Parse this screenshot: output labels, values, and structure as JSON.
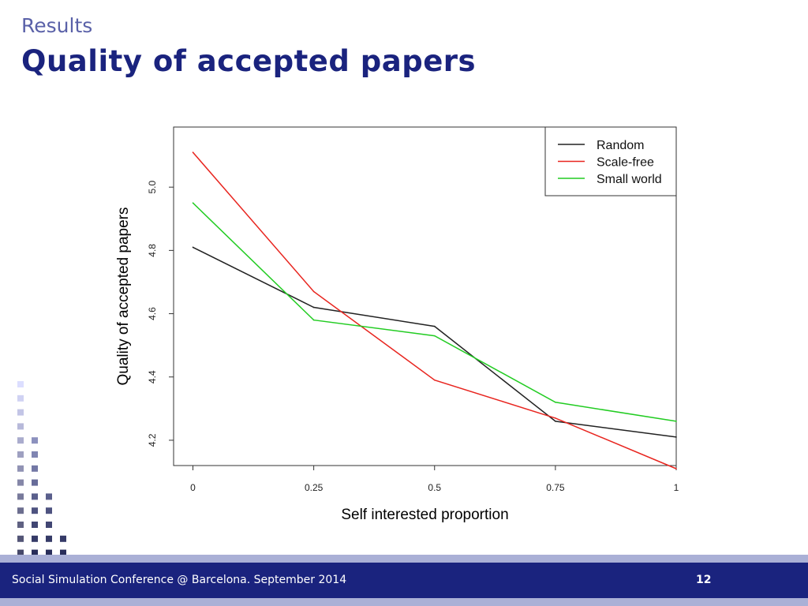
{
  "slide": {
    "section": "Results",
    "title": "Quality of accepted papers"
  },
  "footer": {
    "conference": "Social Simulation Conference @ Barcelona. September 2014",
    "page_number": "12"
  },
  "colors": {
    "title": "#1a237e",
    "section": "#5a61a8",
    "footer_bg": "#1a237e",
    "footer_band": "#aab0d6"
  },
  "chart_data": {
    "type": "line",
    "title": "",
    "xlabel": "Self interested proportion",
    "ylabel": "Quality of accepted papers",
    "x": [
      0,
      0.25,
      0.5,
      0.75,
      1
    ],
    "x_tick_labels": [
      "0",
      "0.25",
      "0.5",
      "0.75",
      "1"
    ],
    "y_ticks": [
      4.2,
      4.4,
      4.6,
      4.8,
      5.0
    ],
    "y_tick_labels": [
      "4.2",
      "4.4",
      "4.6",
      "4.8",
      "5.0"
    ],
    "xlim": [
      -0.04,
      1.0
    ],
    "ylim": [
      4.12,
      5.19
    ],
    "grid": false,
    "legend_position": "top-right",
    "series": [
      {
        "name": "Random",
        "color": "#222222",
        "values": [
          4.81,
          4.62,
          4.56,
          4.26,
          4.21
        ]
      },
      {
        "name": "Scale-free",
        "color": "#e8251f",
        "values": [
          5.11,
          4.67,
          4.39,
          4.27,
          4.11
        ]
      },
      {
        "name": "Small world",
        "color": "#22cc22",
        "values": [
          4.95,
          4.58,
          4.53,
          4.32,
          4.26
        ]
      }
    ]
  }
}
